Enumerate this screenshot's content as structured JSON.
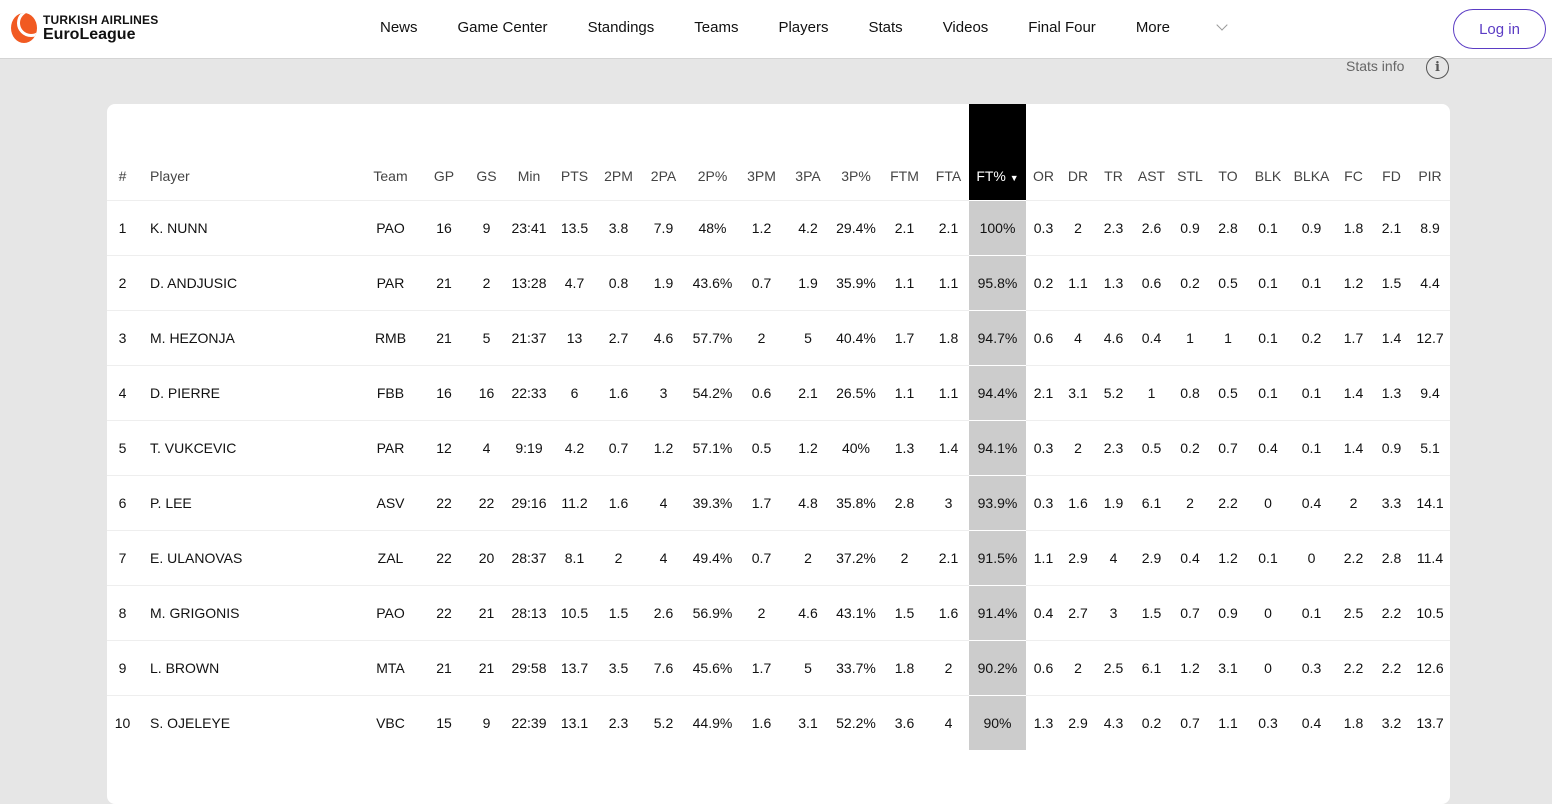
{
  "brand": {
    "line1": "TURKISH AIRLINES",
    "line2": "EuroLeague",
    "color": "#f15a22"
  },
  "nav": {
    "items": [
      "News",
      "Game Center",
      "Standings",
      "Teams",
      "Players",
      "Stats",
      "Videos",
      "Final Four"
    ],
    "more": "More",
    "login": "Log in"
  },
  "stats_info": "Stats info",
  "table": {
    "sorted_column": "FT%",
    "columns": [
      "#",
      "Player",
      "Team",
      "GP",
      "GS",
      "Min",
      "PTS",
      "2PM",
      "2PA",
      "2P%",
      "3PM",
      "3PA",
      "3P%",
      "FTM",
      "FTA",
      "FT%",
      "OR",
      "DR",
      "TR",
      "AST",
      "STL",
      "TO",
      "BLK",
      "BLKA",
      "FC",
      "FD",
      "PIR"
    ],
    "rows": [
      [
        "1",
        "K. NUNN",
        "PAO",
        "16",
        "9",
        "23:41",
        "13.5",
        "3.8",
        "7.9",
        "48%",
        "1.2",
        "4.2",
        "29.4%",
        "2.1",
        "2.1",
        "100%",
        "0.3",
        "2",
        "2.3",
        "2.6",
        "0.9",
        "2.8",
        "0.1",
        "0.9",
        "1.8",
        "2.1",
        "8.9"
      ],
      [
        "2",
        "D. ANDJUSIC",
        "PAR",
        "21",
        "2",
        "13:28",
        "4.7",
        "0.8",
        "1.9",
        "43.6%",
        "0.7",
        "1.9",
        "35.9%",
        "1.1",
        "1.1",
        "95.8%",
        "0.2",
        "1.1",
        "1.3",
        "0.6",
        "0.2",
        "0.5",
        "0.1",
        "0.1",
        "1.2",
        "1.5",
        "4.4"
      ],
      [
        "3",
        "M. HEZONJA",
        "RMB",
        "21",
        "5",
        "21:37",
        "13",
        "2.7",
        "4.6",
        "57.7%",
        "2",
        "5",
        "40.4%",
        "1.7",
        "1.8",
        "94.7%",
        "0.6",
        "4",
        "4.6",
        "0.4",
        "1",
        "1",
        "0.1",
        "0.2",
        "1.7",
        "1.4",
        "12.7"
      ],
      [
        "4",
        "D. PIERRE",
        "FBB",
        "16",
        "16",
        "22:33",
        "6",
        "1.6",
        "3",
        "54.2%",
        "0.6",
        "2.1",
        "26.5%",
        "1.1",
        "1.1",
        "94.4%",
        "2.1",
        "3.1",
        "5.2",
        "1",
        "0.8",
        "0.5",
        "0.1",
        "0.1",
        "1.4",
        "1.3",
        "9.4"
      ],
      [
        "5",
        "T. VUKCEVIC",
        "PAR",
        "12",
        "4",
        "9:19",
        "4.2",
        "0.7",
        "1.2",
        "57.1%",
        "0.5",
        "1.2",
        "40%",
        "1.3",
        "1.4",
        "94.1%",
        "0.3",
        "2",
        "2.3",
        "0.5",
        "0.2",
        "0.7",
        "0.4",
        "0.1",
        "1.4",
        "0.9",
        "5.1"
      ],
      [
        "6",
        "P. LEE",
        "ASV",
        "22",
        "22",
        "29:16",
        "11.2",
        "1.6",
        "4",
        "39.3%",
        "1.7",
        "4.8",
        "35.8%",
        "2.8",
        "3",
        "93.9%",
        "0.3",
        "1.6",
        "1.9",
        "6.1",
        "2",
        "2.2",
        "0",
        "0.4",
        "2",
        "3.3",
        "14.1"
      ],
      [
        "7",
        "E. ULANOVAS",
        "ZAL",
        "22",
        "20",
        "28:37",
        "8.1",
        "2",
        "4",
        "49.4%",
        "0.7",
        "2",
        "37.2%",
        "2",
        "2.1",
        "91.5%",
        "1.1",
        "2.9",
        "4",
        "2.9",
        "0.4",
        "1.2",
        "0.1",
        "0",
        "2.2",
        "2.8",
        "11.4"
      ],
      [
        "8",
        "M. GRIGONIS",
        "PAO",
        "22",
        "21",
        "28:13",
        "10.5",
        "1.5",
        "2.6",
        "56.9%",
        "2",
        "4.6",
        "43.1%",
        "1.5",
        "1.6",
        "91.4%",
        "0.4",
        "2.7",
        "3",
        "1.5",
        "0.7",
        "0.9",
        "0",
        "0.1",
        "2.5",
        "2.2",
        "10.5"
      ],
      [
        "9",
        "L. BROWN",
        "MTA",
        "21",
        "21",
        "29:58",
        "13.7",
        "3.5",
        "7.6",
        "45.6%",
        "1.7",
        "5",
        "33.7%",
        "1.8",
        "2",
        "90.2%",
        "0.6",
        "2",
        "2.5",
        "6.1",
        "1.2",
        "3.1",
        "0",
        "0.3",
        "2.2",
        "2.2",
        "12.6"
      ],
      [
        "10",
        "S. OJELEYE",
        "VBC",
        "15",
        "9",
        "22:39",
        "13.1",
        "2.3",
        "5.2",
        "44.9%",
        "1.6",
        "3.1",
        "52.2%",
        "3.6",
        "4",
        "90%",
        "1.3",
        "2.9",
        "4.3",
        "0.2",
        "0.7",
        "1.1",
        "0.3",
        "0.4",
        "1.8",
        "3.2",
        "13.7"
      ]
    ]
  }
}
